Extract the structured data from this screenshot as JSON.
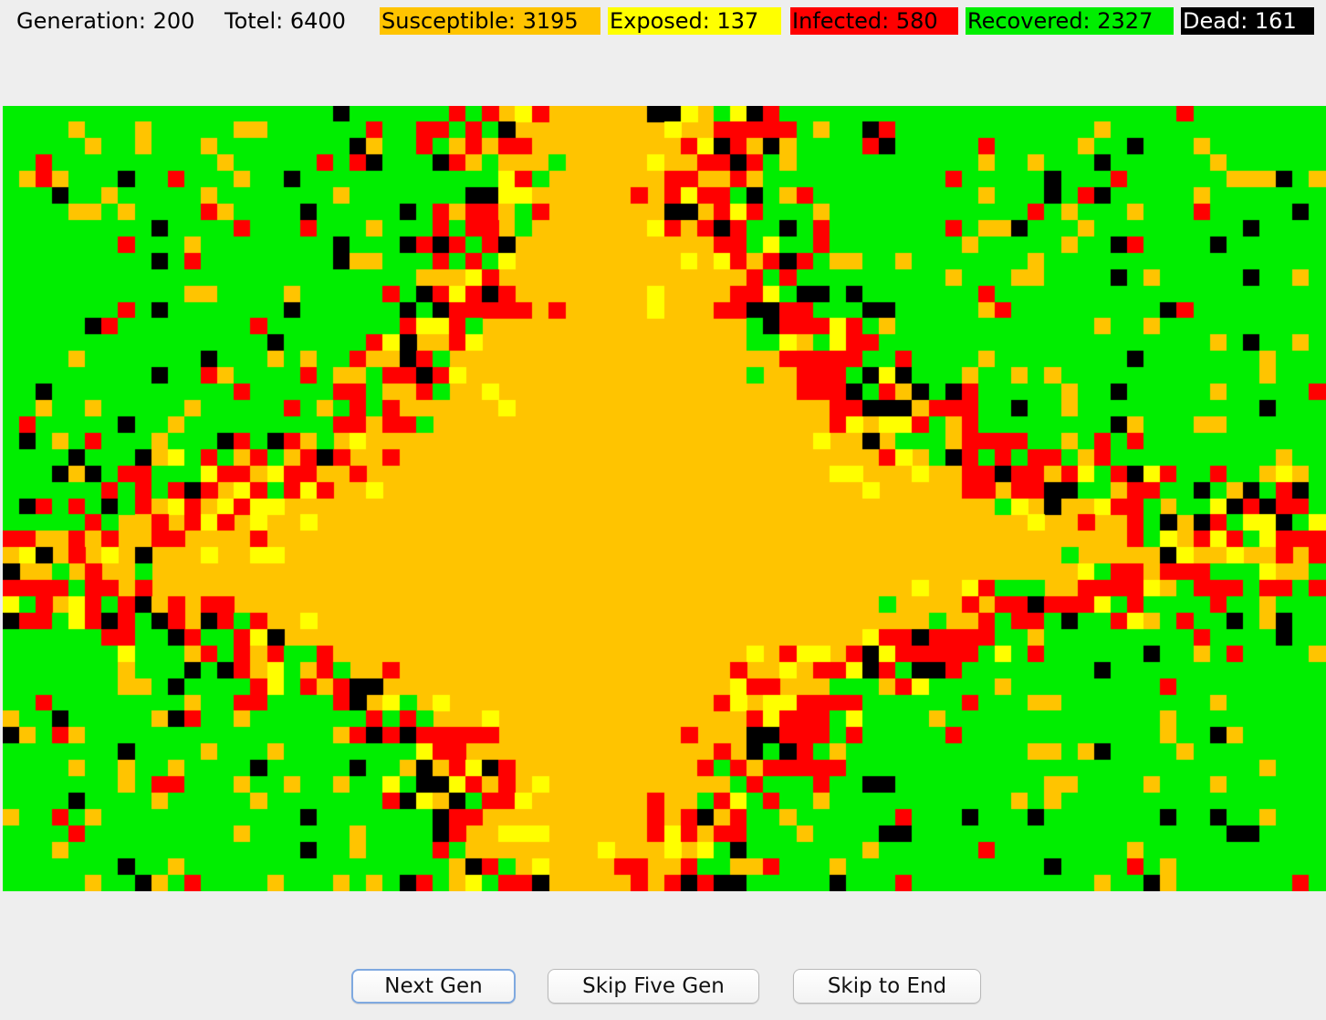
{
  "stats": {
    "generation": "Generation: 200",
    "total": "Totel: 6400",
    "susceptible": "Susceptible: 3195",
    "exposed": "Exposed: 137",
    "infected": "Infected: 580",
    "recovered": "Recovered: 2327",
    "dead": "Dead: 161"
  },
  "colors": {
    "susceptible": "#ffc400",
    "exposed": "#ffff00",
    "infected": "#ff0000",
    "recovered": "#00ee00",
    "dead": "#000000",
    "dead_text": "#ffffff"
  },
  "grid": {
    "columns": 80,
    "rows": 48
  },
  "buttons": {
    "next": "Next Gen",
    "five": "Skip Five Gen",
    "end": "Skip to End"
  }
}
